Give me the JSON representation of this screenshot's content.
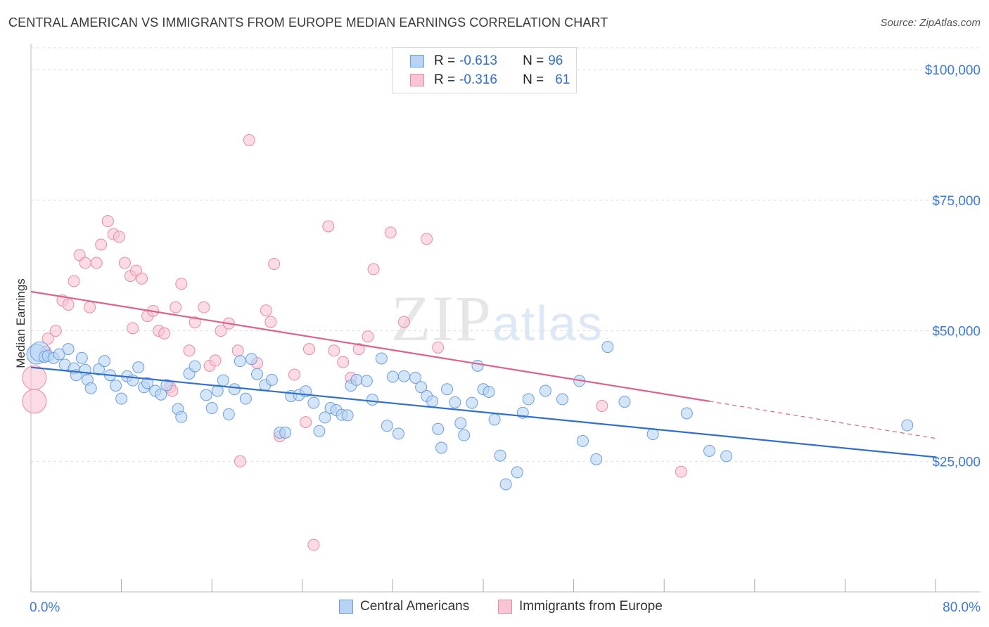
{
  "title": "CENTRAL AMERICAN VS IMMIGRANTS FROM EUROPE MEDIAN EARNINGS CORRELATION CHART",
  "source": "Source: ZipAtlas.com",
  "watermark": {
    "zip": "ZIP",
    "atlas": "atlas"
  },
  "legend": {
    "r_label": "R =",
    "n_label": "N =",
    "rows": [
      {
        "r": "-0.613",
        "n": "96"
      },
      {
        "r": "-0.316",
        "n": "61"
      }
    ]
  },
  "colors": {
    "blue_fill": "#b9d3f3",
    "blue_stroke": "#6a9fdf",
    "blue_line": "#2f6fcf",
    "pink_fill": "#f9c4d3",
    "pink_stroke": "#e98aa6",
    "pink_line": "#e0608a",
    "tick": "#3d7bd6",
    "grid": "#dedede"
  },
  "chart_data": {
    "type": "scatter",
    "title": "CENTRAL AMERICAN VS IMMIGRANTS FROM EUROPE MEDIAN EARNINGS CORRELATION CHART",
    "xlabel": "",
    "ylabel": "Median Earnings",
    "xlim": [
      0,
      80
    ],
    "ylim": [
      0,
      105000
    ],
    "x_tick_labels": [
      "0.0%",
      "80.0%"
    ],
    "y_ticks": [
      25000,
      50000,
      75000,
      100000
    ],
    "y_tick_labels": [
      "$25,000",
      "$50,000",
      "$75,000",
      "$100,000"
    ],
    "grid": "horizontal dashed",
    "legend_position": "top-center",
    "series": [
      {
        "name": "Central Americans",
        "r": -0.613,
        "n": 96,
        "trend": {
          "x": [
            0,
            80
          ],
          "y": [
            43000,
            25800
          ]
        },
        "points": [
          [
            0.5,
            45500
          ],
          [
            0.8,
            46000
          ],
          [
            1.2,
            45000
          ],
          [
            1.5,
            45200
          ],
          [
            2.0,
            44800
          ],
          [
            2.5,
            45500
          ],
          [
            3.0,
            43500
          ],
          [
            3.3,
            46500
          ],
          [
            3.8,
            42800
          ],
          [
            4.0,
            41500
          ],
          [
            4.5,
            44800
          ],
          [
            4.8,
            42500
          ],
          [
            5.0,
            40600
          ],
          [
            5.3,
            39000
          ],
          [
            6.0,
            42600
          ],
          [
            6.5,
            44200
          ],
          [
            7.0,
            41500
          ],
          [
            7.5,
            39500
          ],
          [
            8.0,
            37000
          ],
          [
            8.5,
            41300
          ],
          [
            9.0,
            40500
          ],
          [
            9.5,
            43000
          ],
          [
            10.0,
            39200
          ],
          [
            10.3,
            40000
          ],
          [
            11.0,
            38500
          ],
          [
            11.5,
            37800
          ],
          [
            12.0,
            39600
          ],
          [
            13.0,
            35000
          ],
          [
            13.3,
            33500
          ],
          [
            14.0,
            41800
          ],
          [
            14.5,
            43200
          ],
          [
            15.5,
            37700
          ],
          [
            16.0,
            35200
          ],
          [
            16.5,
            38500
          ],
          [
            17.0,
            40500
          ],
          [
            17.5,
            34000
          ],
          [
            18.0,
            38800
          ],
          [
            18.5,
            44200
          ],
          [
            19.0,
            37000
          ],
          [
            19.5,
            44600
          ],
          [
            20.0,
            41700
          ],
          [
            20.7,
            39600
          ],
          [
            21.3,
            40600
          ],
          [
            22.0,
            30500
          ],
          [
            22.5,
            30500
          ],
          [
            23.0,
            37500
          ],
          [
            23.7,
            37700
          ],
          [
            24.3,
            38400
          ],
          [
            25.0,
            36200
          ],
          [
            25.5,
            30800
          ],
          [
            26.0,
            33400
          ],
          [
            26.5,
            35200
          ],
          [
            27.0,
            34800
          ],
          [
            27.5,
            33900
          ],
          [
            28.3,
            39500
          ],
          [
            28.8,
            40600
          ],
          [
            29.7,
            40400
          ],
          [
            30.2,
            36800
          ],
          [
            31.0,
            44700
          ],
          [
            31.5,
            31800
          ],
          [
            32.0,
            41200
          ],
          [
            32.5,
            30300
          ],
          [
            33.0,
            41300
          ],
          [
            34.0,
            41000
          ],
          [
            34.5,
            39200
          ],
          [
            35.0,
            37500
          ],
          [
            35.5,
            36500
          ],
          [
            36.0,
            31200
          ],
          [
            36.3,
            27600
          ],
          [
            36.8,
            38800
          ],
          [
            37.5,
            36300
          ],
          [
            38.0,
            32300
          ],
          [
            38.3,
            30000
          ],
          [
            39.0,
            36200
          ],
          [
            39.5,
            43300
          ],
          [
            40.0,
            38800
          ],
          [
            40.5,
            38300
          ],
          [
            41.0,
            33000
          ],
          [
            41.5,
            26100
          ],
          [
            42.0,
            20600
          ],
          [
            43.0,
            22900
          ],
          [
            43.5,
            34300
          ],
          [
            44.0,
            36900
          ],
          [
            45.5,
            38500
          ],
          [
            47.0,
            36900
          ],
          [
            48.5,
            40400
          ],
          [
            48.8,
            28900
          ],
          [
            50.0,
            25400
          ],
          [
            51.0,
            46900
          ],
          [
            52.5,
            36400
          ],
          [
            55.0,
            30200
          ],
          [
            58.0,
            34200
          ],
          [
            60.0,
            27000
          ],
          [
            61.5,
            26000
          ],
          [
            77.5,
            31900
          ],
          [
            28.0,
            33800
          ]
        ]
      },
      {
        "name": "Immigrants from Europe",
        "r": -0.316,
        "n": 61,
        "trend": {
          "x": [
            0,
            60
          ],
          "y": [
            57500,
            36500
          ]
        },
        "trend_dashed": {
          "x": [
            60,
            80
          ],
          "y": [
            36500,
            29400
          ]
        },
        "points": [
          [
            0.3,
            41000
          ],
          [
            0.3,
            36500
          ],
          [
            1.3,
            46000
          ],
          [
            1.5,
            48500
          ],
          [
            2.2,
            50000
          ],
          [
            2.8,
            55800
          ],
          [
            3.3,
            55000
          ],
          [
            3.8,
            59500
          ],
          [
            4.3,
            64500
          ],
          [
            4.8,
            63000
          ],
          [
            5.2,
            54500
          ],
          [
            5.8,
            63000
          ],
          [
            6.2,
            66500
          ],
          [
            6.8,
            71000
          ],
          [
            7.3,
            68500
          ],
          [
            7.8,
            68000
          ],
          [
            8.3,
            63000
          ],
          [
            8.8,
            60500
          ],
          [
            9.3,
            61500
          ],
          [
            9.8,
            60000
          ],
          [
            10.3,
            52800
          ],
          [
            10.8,
            53800
          ],
          [
            11.3,
            50000
          ],
          [
            11.8,
            49500
          ],
          [
            12.3,
            39200
          ],
          [
            12.8,
            54500
          ],
          [
            13.3,
            59000
          ],
          [
            14.0,
            46200
          ],
          [
            14.5,
            51600
          ],
          [
            15.3,
            54500
          ],
          [
            15.8,
            43300
          ],
          [
            16.3,
            44300
          ],
          [
            16.8,
            50000
          ],
          [
            17.5,
            51400
          ],
          [
            18.3,
            46200
          ],
          [
            18.5,
            25000
          ],
          [
            19.3,
            86500
          ],
          [
            20.0,
            43800
          ],
          [
            20.8,
            53900
          ],
          [
            21.2,
            51700
          ],
          [
            21.5,
            62800
          ],
          [
            22.0,
            29800
          ],
          [
            23.3,
            41600
          ],
          [
            24.3,
            32500
          ],
          [
            25.0,
            9000
          ],
          [
            26.3,
            70000
          ],
          [
            26.8,
            46200
          ],
          [
            27.6,
            44000
          ],
          [
            28.3,
            41000
          ],
          [
            29.0,
            46500
          ],
          [
            29.8,
            48900
          ],
          [
            30.3,
            61800
          ],
          [
            31.8,
            68800
          ],
          [
            33.0,
            51700
          ],
          [
            35.0,
            67600
          ],
          [
            36.0,
            46800
          ],
          [
            12.5,
            38500
          ],
          [
            50.5,
            35600
          ],
          [
            57.5,
            23000
          ],
          [
            24.6,
            46500
          ],
          [
            9.0,
            50500
          ]
        ]
      }
    ]
  },
  "bottom_legend": [
    "Central Americans",
    "Immigrants from Europe"
  ]
}
